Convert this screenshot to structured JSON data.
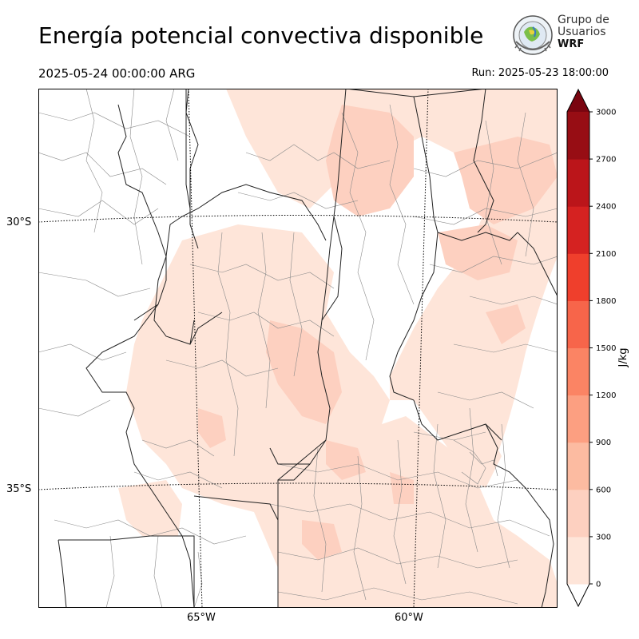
{
  "header": {
    "title": "Energía potencial convectiva disponible",
    "valid_time": "2025-05-24 00:00:00 ARG",
    "run_time": "Run: 2025-05-23 18:00:00"
  },
  "logo": {
    "line1": "Grupo de",
    "line2": "Usuarios",
    "line3": "WRF"
  },
  "map": {
    "lat_labels": [
      "30°S",
      "35°S"
    ],
    "lon_labels": [
      "65°W",
      "60°W"
    ],
    "variable": "CAPE"
  },
  "colorbar": {
    "unit": "J/kg",
    "ticks": [
      "0",
      "300",
      "600",
      "900",
      "1200",
      "1500",
      "1800",
      "2100",
      "2400",
      "2700",
      "3000"
    ],
    "colors": [
      "#fee5d9",
      "#fdd0c0",
      "#fcbba1",
      "#fc9f81",
      "#fb8464",
      "#f7654a",
      "#ef3f2c",
      "#d52221",
      "#bb151a",
      "#970d14",
      "#7a0510"
    ],
    "extend": "both"
  }
}
